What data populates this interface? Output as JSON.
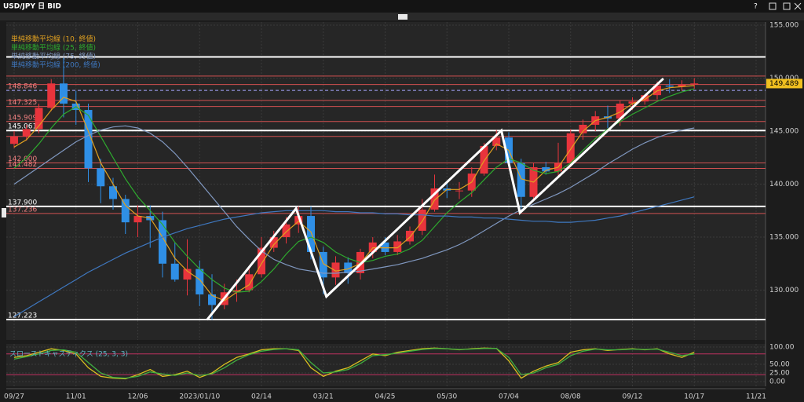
{
  "window": {
    "help": "?"
  },
  "chart_data": [
    {
      "type": "candlestick",
      "title": "USD/JPY 日 BID",
      "categories": [
        "09/27",
        null,
        null,
        null,
        null,
        "11/01",
        null,
        null,
        null,
        null,
        "12/06",
        null,
        null,
        null,
        null,
        "2023/01/10",
        null,
        null,
        null,
        null,
        "02/14",
        null,
        null,
        null,
        null,
        "03/21",
        null,
        null,
        null,
        null,
        "04/25",
        null,
        null,
        null,
        null,
        "05/30",
        null,
        null,
        null,
        null,
        "07/04",
        null,
        null,
        null,
        null,
        "08/08",
        null,
        null,
        null,
        null,
        "09/12",
        null,
        null,
        null,
        null,
        "10/17",
        null,
        null,
        null,
        null,
        "11/21"
      ],
      "open": [
        143.8,
        144.5,
        145.2,
        147.2,
        149.5,
        147.6,
        147.0,
        141.5,
        139.8,
        138.6,
        136.4,
        137.0,
        136.6,
        132.5,
        131.0,
        132.0,
        129.6,
        128.6,
        129.8,
        130.0,
        131.5,
        134.0,
        135.0,
        136.2,
        137.0,
        133.6,
        131.2,
        132.6,
        131.6,
        133.6,
        134.5,
        133.6,
        134.6,
        135.6,
        137.6,
        139.6,
        139.4,
        139.4,
        141.0,
        143.6,
        144.4,
        142.0,
        138.8,
        141.6,
        141.2,
        142.0,
        144.8,
        145.6,
        146.4,
        146.2,
        147.6,
        147.8,
        148.4,
        149.3,
        149.2,
        149.4,
        null,
        null,
        null,
        null,
        null
      ],
      "high": [
        145.0,
        145.6,
        147.6,
        149.9,
        151.9,
        148.8,
        147.6,
        142.4,
        140.6,
        139.0,
        138.0,
        138.0,
        137.4,
        134.5,
        134.8,
        132.8,
        131.5,
        130.6,
        131.0,
        132.0,
        135.0,
        135.6,
        136.9,
        137.9,
        137.9,
        134.1,
        133.2,
        133.1,
        133.9,
        135.0,
        135.0,
        135.2,
        136.0,
        138.6,
        140.9,
        140.3,
        140.2,
        141.6,
        143.9,
        145.1,
        144.9,
        142.4,
        142.0,
        142.1,
        143.9,
        145.2,
        146.1,
        146.9,
        147.4,
        147.9,
        148.2,
        148.5,
        149.7,
        149.9,
        149.8,
        150.0,
        null,
        null,
        null,
        null,
        null
      ],
      "low": [
        143.4,
        144.1,
        144.8,
        146.9,
        146.3,
        145.6,
        140.2,
        138.2,
        137.6,
        135.3,
        135.0,
        134.0,
        131.2,
        130.8,
        129.5,
        128.5,
        127.2,
        128.2,
        128.9,
        129.8,
        131.2,
        133.6,
        134.4,
        135.4,
        132.9,
        129.6,
        130.5,
        130.6,
        131.0,
        133.0,
        133.3,
        133.3,
        134.3,
        135.2,
        137.4,
        138.7,
        138.6,
        138.8,
        140.8,
        143.2,
        141.8,
        137.7,
        138.5,
        140.9,
        140.8,
        141.6,
        144.2,
        145.0,
        145.3,
        145.5,
        147.0,
        147.5,
        148.0,
        148.6,
        148.8,
        149.0,
        null,
        null,
        null,
        null,
        null
      ],
      "close": [
        144.5,
        145.2,
        147.2,
        149.5,
        147.6,
        147.0,
        141.5,
        139.8,
        138.6,
        136.4,
        137.0,
        136.6,
        132.5,
        131.0,
        132.0,
        129.6,
        128.6,
        129.8,
        130.0,
        131.5,
        134.0,
        135.0,
        136.2,
        137.0,
        133.6,
        131.2,
        132.6,
        131.6,
        133.6,
        134.5,
        133.6,
        134.6,
        135.6,
        137.6,
        139.6,
        139.4,
        139.4,
        141.0,
        143.6,
        144.4,
        142.0,
        138.8,
        141.6,
        141.2,
        142.0,
        144.8,
        145.6,
        146.4,
        146.2,
        147.6,
        147.8,
        148.4,
        149.3,
        149.2,
        149.4,
        149.5,
        null,
        null,
        null,
        null,
        null
      ],
      "up_color": "#e8343c",
      "down_color": "#2f8fe6",
      "series": [
        {
          "name": "単純移動平均線 (10, 終値)",
          "color": "#e0a020",
          "values": [
            143.5,
            144.2,
            145.5,
            147.0,
            148.2,
            147.8,
            145.0,
            142.0,
            140.0,
            138.0,
            137.0,
            136.8,
            135.0,
            133.0,
            131.8,
            131.0,
            129.5,
            129.0,
            129.8,
            130.5,
            132.5,
            134.3,
            135.5,
            136.5,
            135.5,
            132.5,
            131.8,
            132.0,
            132.5,
            134.0,
            134.0,
            134.0,
            135.0,
            136.5,
            138.5,
            139.5,
            139.5,
            140.2,
            142.2,
            143.8,
            143.2,
            140.5,
            140.2,
            141.3,
            141.6,
            143.3,
            145.0,
            146.0,
            146.3,
            146.8,
            147.6,
            148.0,
            148.8,
            149.1,
            149.2,
            149.3,
            null,
            null,
            null,
            null,
            null
          ]
        },
        {
          "name": "単純移動平均線 (25, 終値)",
          "color": "#2eaa2e",
          "values": [
            141.5,
            142.5,
            143.8,
            145.3,
            146.6,
            147.3,
            146.5,
            144.5,
            142.5,
            140.5,
            138.8,
            137.5,
            136.2,
            134.5,
            133.2,
            132.0,
            131.0,
            130.2,
            129.8,
            129.9,
            130.8,
            132.0,
            133.4,
            134.6,
            135.0,
            134.5,
            133.6,
            133.0,
            132.6,
            132.8,
            133.2,
            133.4,
            133.9,
            134.7,
            136.0,
            137.3,
            138.3,
            139.2,
            140.4,
            141.6,
            142.4,
            142.0,
            141.3,
            141.0,
            141.2,
            142.0,
            143.2,
            144.3,
            145.2,
            145.9,
            146.6,
            147.2,
            147.8,
            148.3,
            148.7,
            149.0,
            null,
            null,
            null,
            null,
            null
          ]
        },
        {
          "name": "単純移動平均線 (75, 終値)",
          "color": "#8098c0",
          "values": [
            140.0,
            140.8,
            141.6,
            142.4,
            143.2,
            144.0,
            144.6,
            145.1,
            145.4,
            145.5,
            145.3,
            144.8,
            144.0,
            142.9,
            141.6,
            140.2,
            138.8,
            137.4,
            136.0,
            134.8,
            133.7,
            132.9,
            132.4,
            132.0,
            131.8,
            131.6,
            131.6,
            131.7,
            131.8,
            132.0,
            132.2,
            132.4,
            132.7,
            133.0,
            133.4,
            133.8,
            134.3,
            134.9,
            135.6,
            136.3,
            137.0,
            137.6,
            138.1,
            138.6,
            139.1,
            139.7,
            140.4,
            141.1,
            141.9,
            142.6,
            143.3,
            143.9,
            144.4,
            144.8,
            145.1,
            145.3,
            null,
            null,
            null,
            null,
            null
          ]
        },
        {
          "name": "単純移動平均線 (200, 終値)",
          "color": "#3f78c0",
          "values": [
            127.5,
            128.2,
            128.9,
            129.6,
            130.3,
            131.0,
            131.7,
            132.3,
            132.9,
            133.5,
            134.0,
            134.5,
            135.0,
            135.4,
            135.8,
            136.1,
            136.4,
            136.7,
            136.9,
            137.1,
            137.3,
            137.4,
            137.5,
            137.5,
            137.5,
            137.5,
            137.4,
            137.4,
            137.3,
            137.3,
            137.2,
            137.2,
            137.1,
            137.1,
            137.0,
            137.0,
            136.9,
            136.9,
            136.8,
            136.8,
            136.7,
            136.6,
            136.5,
            136.5,
            136.4,
            136.4,
            136.5,
            136.6,
            136.8,
            137.0,
            137.3,
            137.6,
            137.9,
            138.2,
            138.5,
            138.8,
            null,
            null,
            null,
            null,
            null
          ]
        }
      ],
      "ylim": [
        125.3,
        155.3
      ],
      "yticks": [
        {
          "value": 130,
          "label": "130.000"
        },
        {
          "value": 135,
          "label": "135.000"
        },
        {
          "value": 140,
          "label": "140.000"
        },
        {
          "value": 145,
          "label": "145.000"
        },
        {
          "value": 150,
          "label": "150.000"
        },
        {
          "value": 155,
          "label": "155.000"
        }
      ],
      "grid": true,
      "levels": [
        {
          "value": 152,
          "color": "#ffffff"
        },
        {
          "value": 150.2,
          "color": "#d05050"
        },
        {
          "value": 149.4,
          "color": "#d05050"
        },
        {
          "value": 148.846,
          "label": "148.846",
          "color": "#a8a8ff",
          "dashed": true
        },
        {
          "value": 147.9,
          "color": "#d05050"
        },
        {
          "value": 147.325,
          "label": "147.325",
          "color": "#d05050"
        },
        {
          "value": 145.909,
          "label": "145.909",
          "color": "#d05050"
        },
        {
          "value": 145.061,
          "label": "145.061",
          "color": "#ffffff"
        },
        {
          "value": 144.5,
          "color": "#d05050"
        },
        {
          "value": 142,
          "label": "142.000",
          "color": "#d05050"
        },
        {
          "value": 141.482,
          "label": "141.482",
          "color": "#d05050"
        },
        {
          "value": 137.9,
          "label": "137.900",
          "color": "#ffffff"
        },
        {
          "value": 137.236,
          "label": "137.236",
          "color": "#d05050"
        },
        {
          "value": 127.223,
          "label": "127.223",
          "color": "#ffffff"
        }
      ],
      "trendline": {
        "x": [
          15.6,
          22.8,
          25.25,
          39.4,
          40.9,
          52.5
        ],
        "y": [
          127.2,
          137.7,
          129.4,
          145.06,
          137.3,
          149.96
        ],
        "color": "#ffffff"
      },
      "last_price": 149.489,
      "last_price_color": "#f0c020"
    },
    {
      "type": "line",
      "title": "スローストキャスティクス (25, 3, 3)",
      "series": [
        {
          "color": "#d8c020",
          "values": [
            70,
            75,
            85,
            95,
            90,
            80,
            40,
            15,
            10,
            8,
            20,
            35,
            15,
            20,
            30,
            12,
            25,
            50,
            70,
            80,
            92,
            95,
            95,
            90,
            40,
            15,
            30,
            40,
            60,
            80,
            75,
            85,
            90,
            95,
            97,
            95,
            92,
            95,
            97,
            96,
            60,
            10,
            30,
            45,
            55,
            85,
            92,
            95,
            90,
            93,
            95,
            92,
            95,
            80,
            70,
            85,
            null,
            null,
            null,
            null,
            null
          ]
        },
        {
          "color": "#3fae3f",
          "values": [
            65,
            72,
            80,
            90,
            92,
            85,
            55,
            25,
            12,
            10,
            15,
            28,
            22,
            18,
            25,
            18,
            22,
            40,
            62,
            78,
            88,
            93,
            95,
            92,
            55,
            25,
            28,
            35,
            52,
            75,
            78,
            82,
            88,
            93,
            96,
            95,
            93,
            94,
            96,
            96,
            70,
            20,
            25,
            40,
            50,
            75,
            88,
            94,
            92,
            92,
            94,
            93,
            94,
            85,
            75,
            80,
            null,
            null,
            null,
            null,
            null
          ]
        }
      ],
      "ylim": [
        -13.6,
        109.1
      ],
      "yticks": [
        {
          "value": 0,
          "label": "0.00"
        },
        {
          "value": 25,
          "label": "25.00"
        },
        {
          "value": 50,
          "label": "50.00"
        },
        {
          "value": 100,
          "label": "100.00"
        }
      ],
      "levels": [
        {
          "value": 80,
          "color": "#c03060"
        },
        {
          "value": 20,
          "color": "#c03060"
        }
      ],
      "grid": true
    }
  ]
}
